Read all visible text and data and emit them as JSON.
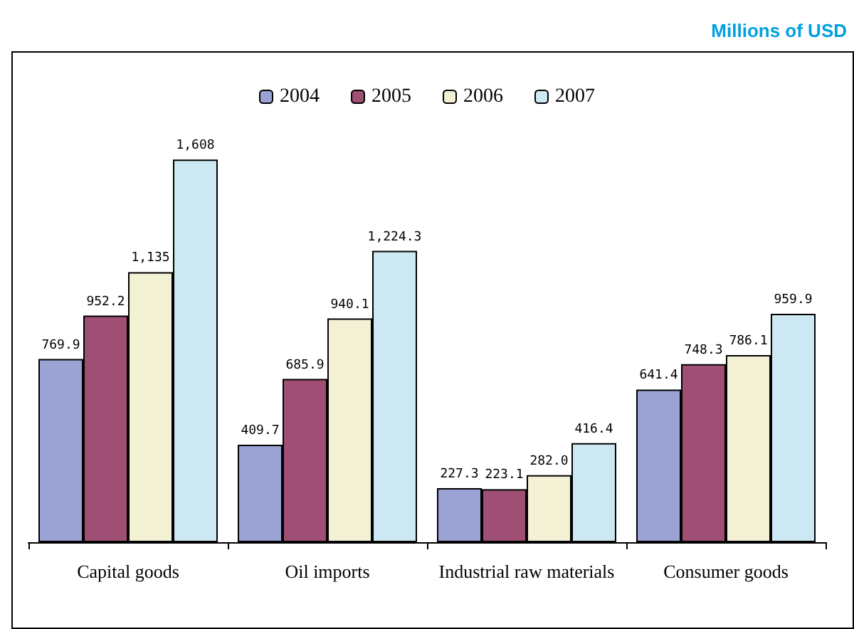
{
  "chart_data": {
    "type": "bar",
    "title": "Millions of USD",
    "categories": [
      "Capital goods",
      "Oil imports",
      "Industrial raw materials",
      "Consumer goods"
    ],
    "series": [
      {
        "name": "2004",
        "color": "#9aa3d4",
        "values": [
          769.9,
          409.7,
          227.3,
          641.4
        ],
        "value_labels": [
          "769.9",
          "409.7",
          "227.3",
          "641.4"
        ]
      },
      {
        "name": "2005",
        "color": "#9e4f73",
        "values": [
          952.2,
          685.9,
          223.1,
          748.3
        ],
        "value_labels": [
          "952.2",
          "685.9",
          "223.1",
          "748.3"
        ]
      },
      {
        "name": "2006",
        "color": "#f3f1d3",
        "values": [
          1135,
          940.1,
          282.0,
          786.1
        ],
        "value_labels": [
          "1,135",
          "940.1",
          "282.0",
          "786.1"
        ]
      },
      {
        "name": "2007",
        "color": "#cce8f2",
        "values": [
          1608,
          1224.3,
          416.4,
          959.9
        ],
        "value_labels": [
          "1,608",
          "1,224.3",
          "416.4",
          "959.9"
        ]
      }
    ],
    "legend": "top"
  }
}
